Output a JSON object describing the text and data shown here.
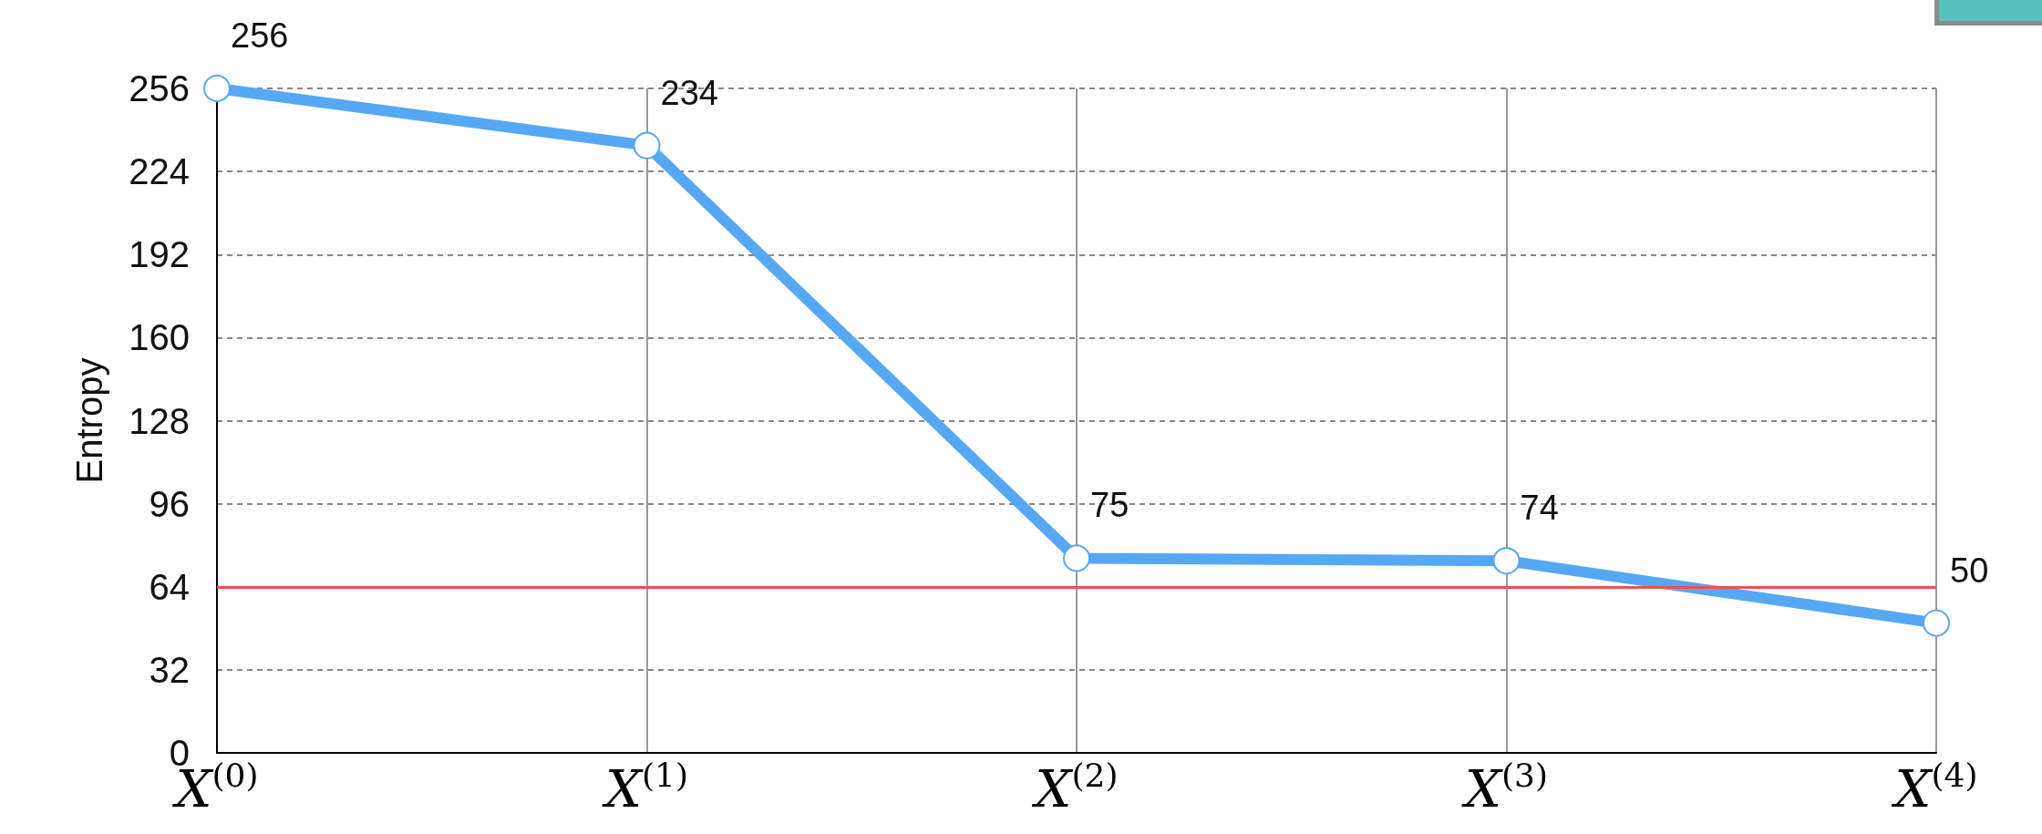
{
  "chart_data": {
    "type": "line",
    "ylabel": "Entropy",
    "categories": [
      "X$^{(0)}$",
      "X$^{(1)}$",
      "X$^{(2)}$",
      "X$^{(3)}$",
      "X$^{(4)}$"
    ],
    "series": [
      {
        "color": "#56a8f5",
        "values": [
          256,
          234,
          75,
          74,
          50
        ]
      }
    ],
    "ylim": [
      0,
      256
    ],
    "yticks": [
      0,
      32,
      64,
      96,
      128,
      160,
      192,
      224,
      256
    ],
    "ref_lines": [
      {
        "axis": "y",
        "value": 64,
        "color": "#ec5050"
      }
    ],
    "grid": true,
    "data_labels": true,
    "marker": "circle",
    "line_style": "solid"
  }
}
